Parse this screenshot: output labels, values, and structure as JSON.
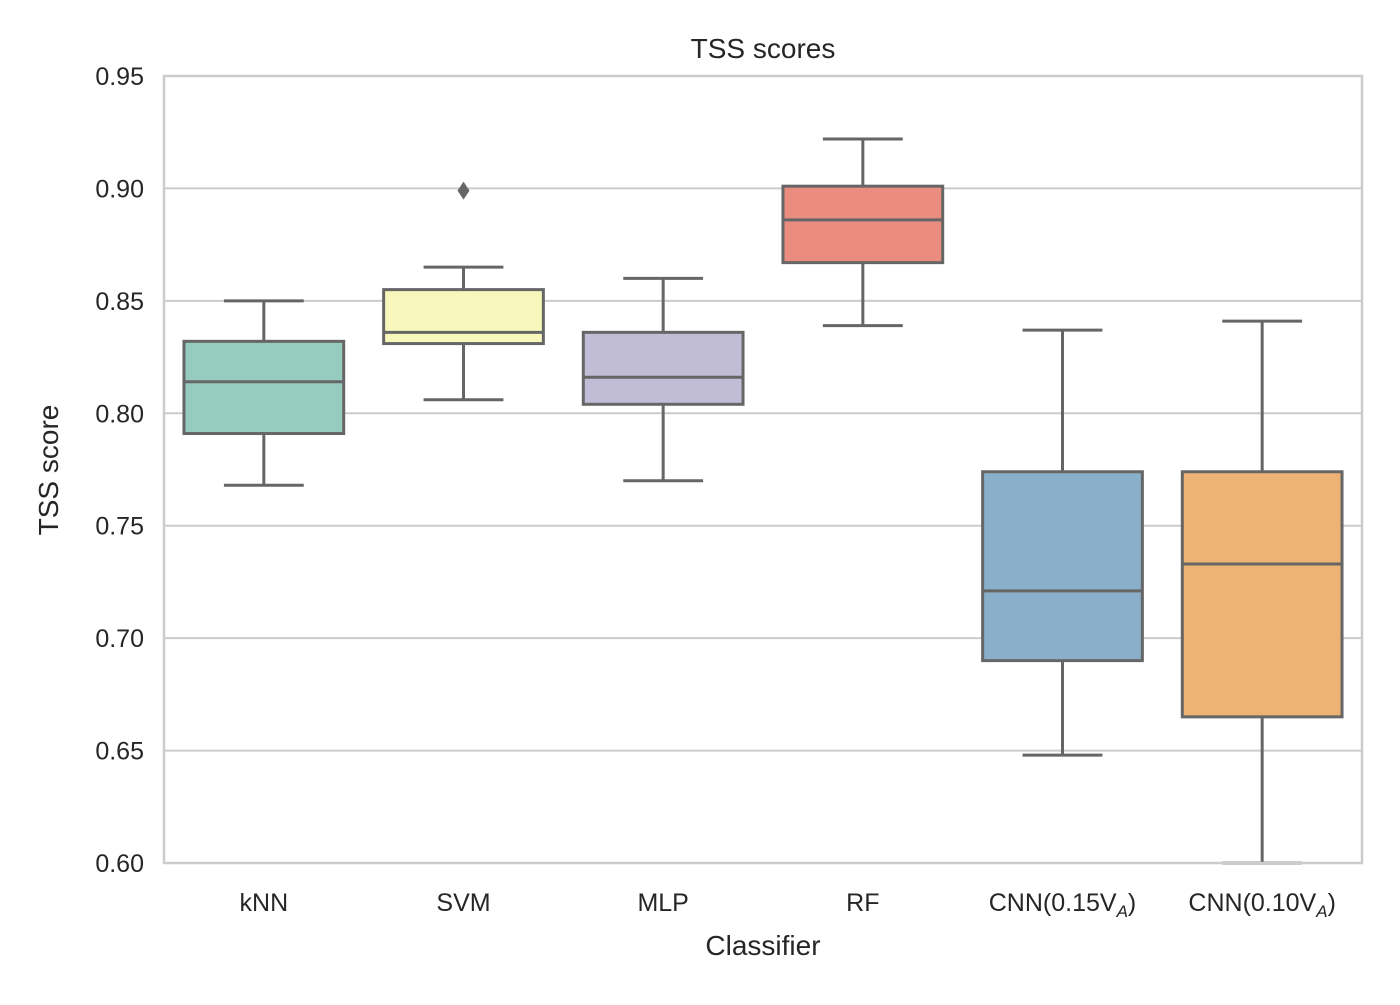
{
  "chart_data": {
    "type": "boxplot",
    "title": "TSS scores",
    "xlabel": "Classifier",
    "ylabel": "TSS score",
    "ylim": [
      0.6,
      0.95
    ],
    "yticks": [
      "0.60",
      "0.65",
      "0.70",
      "0.75",
      "0.80",
      "0.85",
      "0.90",
      "0.95"
    ],
    "grid": "horizontal",
    "categories": [
      {
        "label": "kNN",
        "subscript": "",
        "suffix": ""
      },
      {
        "label": "SVM",
        "subscript": "",
        "suffix": ""
      },
      {
        "label": "MLP",
        "subscript": "",
        "suffix": ""
      },
      {
        "label": "RF",
        "subscript": "",
        "suffix": ""
      },
      {
        "label": "CNN(0.15V",
        "subscript": "A",
        "suffix": ")"
      },
      {
        "label": "CNN(0.10V",
        "subscript": "A",
        "suffix": ")"
      }
    ],
    "boxes": [
      {
        "whisker_low": 0.768,
        "q1": 0.791,
        "median": 0.814,
        "q3": 0.832,
        "whisker_high": 0.85,
        "outliers": [],
        "color": "#96cbbf"
      },
      {
        "whisker_low": 0.806,
        "q1": 0.831,
        "median": 0.836,
        "q3": 0.855,
        "whisker_high": 0.865,
        "outliers": [
          0.899
        ],
        "color": "#f7f7bb"
      },
      {
        "whisker_low": 0.77,
        "q1": 0.804,
        "median": 0.816,
        "q3": 0.836,
        "whisker_high": 0.86,
        "outliers": [],
        "color": "#c1bdd7"
      },
      {
        "whisker_low": 0.839,
        "q1": 0.867,
        "median": 0.886,
        "q3": 0.901,
        "whisker_high": 0.922,
        "outliers": [],
        "color": "#eb8c80"
      },
      {
        "whisker_low": 0.648,
        "q1": 0.69,
        "median": 0.721,
        "q3": 0.774,
        "whisker_high": 0.837,
        "outliers": [],
        "color": "#8aafca"
      },
      {
        "whisker_low": 0.6,
        "q1": 0.665,
        "median": 0.733,
        "q3": 0.774,
        "whisker_high": 0.841,
        "outliers": [],
        "color": "#edb375"
      }
    ],
    "colors": {
      "line": "#666666",
      "grid": "#cccccc",
      "frame": "#cccccc",
      "outlier": "#666666"
    }
  }
}
